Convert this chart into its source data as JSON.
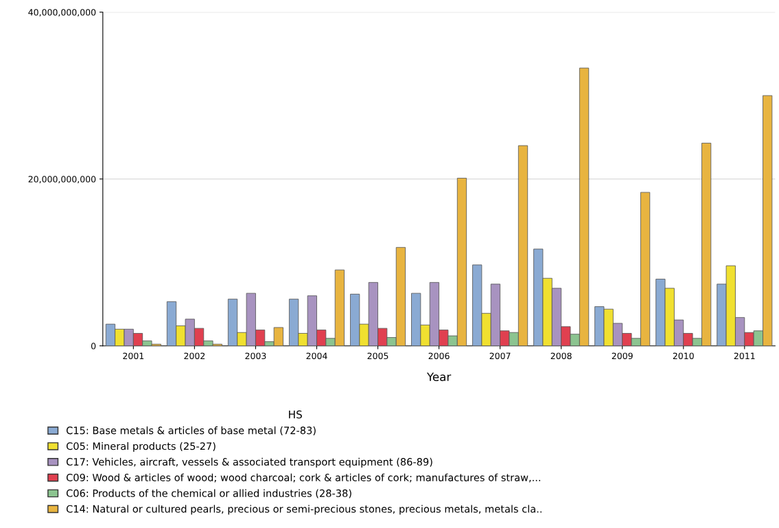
{
  "chart_data": {
    "type": "bar",
    "xlabel": "Year",
    "legend_title": "HS",
    "legend": "bottom",
    "grid": "y",
    "categories": [
      "2001",
      "2002",
      "2003",
      "2004",
      "2005",
      "2006",
      "2007",
      "2008",
      "2009",
      "2010",
      "2011"
    ],
    "ylim": [
      0,
      40000000000
    ],
    "yticks": [
      {
        "value": 0,
        "label": "0"
      },
      {
        "value": 20000000000,
        "label": "20,000,000,000"
      },
      {
        "value": 40000000000,
        "label": "40,000,000,000"
      }
    ],
    "series": [
      {
        "name": "C15: Base metals & articles of base metal (72-83)",
        "color": "#8aaad3",
        "values": [
          2600000000,
          5300000000,
          5600000000,
          5600000000,
          6200000000,
          6300000000,
          9700000000,
          11600000000,
          4700000000,
          8000000000,
          7400000000
        ]
      },
      {
        "name": "C05: Mineral products (25-27)",
        "color": "#f0e030",
        "values": [
          2000000000,
          2400000000,
          1600000000,
          1500000000,
          2600000000,
          2500000000,
          3900000000,
          8100000000,
          4400000000,
          6900000000,
          9600000000
        ]
      },
      {
        "name": "C17: Vehicles, aircraft, vessels & associated transport equipment (86-89)",
        "color": "#a893c0",
        "values": [
          2000000000,
          3200000000,
          6300000000,
          6000000000,
          7600000000,
          7600000000,
          7400000000,
          6900000000,
          2700000000,
          3100000000,
          3400000000
        ]
      },
      {
        "name": "C09: Wood & articles of wood; wood charcoal; cork & articles of cork; manufactures of straw,...",
        "color": "#e04050",
        "values": [
          1500000000,
          2100000000,
          1900000000,
          1900000000,
          2100000000,
          1900000000,
          1800000000,
          2300000000,
          1500000000,
          1500000000,
          1600000000
        ]
      },
      {
        "name": "C06: Products of the chemical or allied industries (28-38)",
        "color": "#8cc490",
        "values": [
          600000000,
          600000000,
          500000000,
          900000000,
          1000000000,
          1200000000,
          1600000000,
          1400000000,
          900000000,
          900000000,
          1800000000
        ]
      },
      {
        "name": "C14: Natural or cultured pearls, precious or semi-precious stones, precious metals, metals cla..",
        "color": "#e8b440",
        "values": [
          200000000,
          200000000,
          2200000000,
          9100000000,
          11800000000,
          20100000000,
          24000000000,
          33300000000,
          18400000000,
          24300000000,
          30000000000
        ]
      }
    ]
  }
}
